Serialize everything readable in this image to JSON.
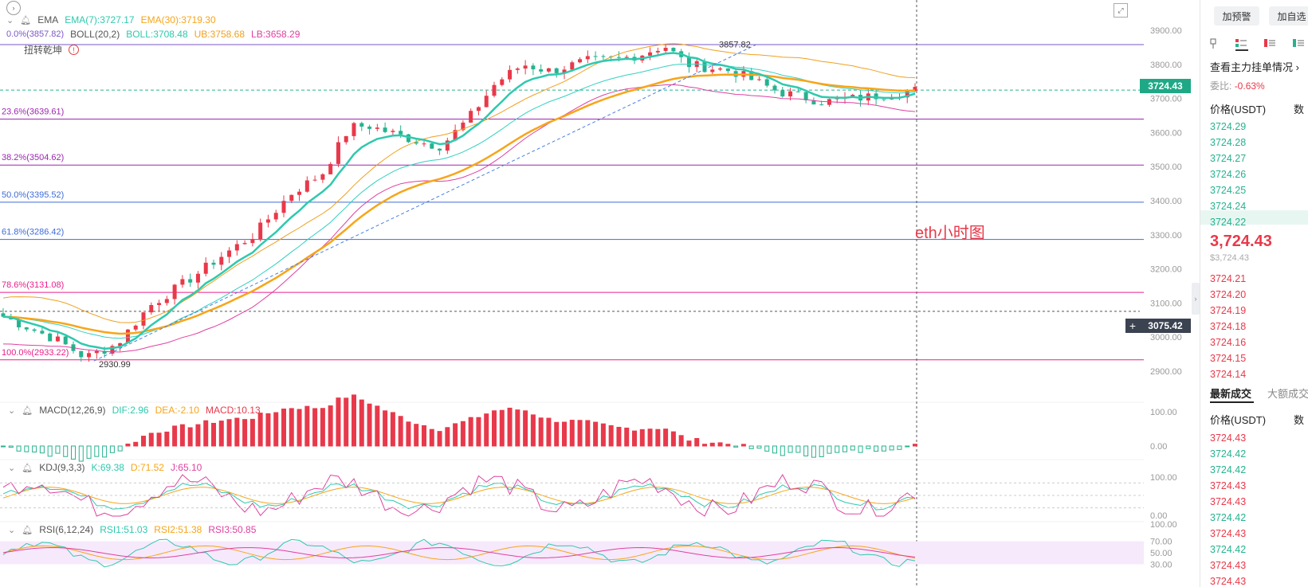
{
  "chart": {
    "toolbar_icon": "chevron-icon",
    "ema": {
      "name": "EMA",
      "v1": "EMA(7):3727.17",
      "v2": "EMA(30):3719.30"
    },
    "boll": {
      "name": "BOLL(20,2)",
      "v1": "BOLL:3708.48",
      "v2": "UB:3758.68",
      "v3": "LB:3658.29"
    },
    "boll_partial": "0.0%(3857.82)",
    "pattern": {
      "name": "扭转乾坤",
      "icon": "alert-icon"
    },
    "annotation": "eth小时图",
    "high_label": "3857.82",
    "low_label": "2930.99",
    "current_price": "3724.43",
    "crosshair_price": "3075.42",
    "fib_levels": [
      {
        "label": "23.6%(3639.61)",
        "price": 3639.61,
        "color": "#9c27b0"
      },
      {
        "label": "38.2%(3504.62)",
        "price": 3504.62,
        "color": "#9c27b0"
      },
      {
        "label": "50.0%(3395.52)",
        "price": 3395.52,
        "color": "#3f6bd8"
      },
      {
        "label": "61.8%(3286.42)",
        "price": 3286.42,
        "color": "#3f6bd8"
      },
      {
        "label": "78.6%(3131.08)",
        "price": 3131.08,
        "color": "#e91e8c"
      },
      {
        "label": "100.0%(2933.22)",
        "price": 2933.22,
        "color": "#e91e8c"
      }
    ],
    "top_fib_price": 3857.82,
    "price_axis": [
      "3900.00",
      "3800.00",
      "3700.00",
      "3600.00",
      "3500.00",
      "3400.00",
      "3300.00",
      "3200.00",
      "3100.00",
      "3000.00",
      "2900.00"
    ],
    "macd": {
      "name": "MACD(12,26,9)",
      "dif": "DIF:2.96",
      "dea": "DEA:-2.10",
      "macd": "MACD:10.13",
      "axis": [
        "100.00",
        "0.00"
      ]
    },
    "kdj": {
      "name": "KDJ(9,3,3)",
      "k": "K:69.38",
      "d": "D:71.52",
      "j": "J:65.10",
      "axis": [
        "100.00",
        "0.00"
      ]
    },
    "rsi": {
      "name": "RSI(6,12,24)",
      "r1": "RSI1:51.03",
      "r2": "RSI2:51.38",
      "r3": "RSI3:50.85",
      "axis": [
        "100.00",
        "70.00",
        "50.00",
        "30.00"
      ]
    },
    "colors": {
      "up": "#e8394a",
      "down": "#26b28f",
      "ema7": "#2ec9ae",
      "ema30": "#f7a519",
      "boll_up": "#f0a020",
      "boll_mid": "#33d0c0",
      "boll_low": "#e040a0"
    }
  },
  "sidebar": {
    "alert_button": "加预警",
    "watchlist_button": "加自选",
    "depth_link": "查看主力挂单情况",
    "ratio_label": "委比:",
    "ratio_value": "-0.63%",
    "price_header": "价格(USDT)",
    "qty_header": "数",
    "asks": [
      "3724.29",
      "3724.28",
      "3724.27",
      "3724.26",
      "3724.25",
      "3724.24",
      "3724.22"
    ],
    "last_price": "3,724.43",
    "last_price_usd": "$3,724.43",
    "bids": [
      "3724.21",
      "3724.20",
      "3724.19",
      "3724.18",
      "3724.16",
      "3724.15",
      "3724.14"
    ],
    "tab_latest": "最新成交",
    "tab_large": "大额成交",
    "trades_price_header": "价格(USDT)",
    "trades_qty_header": "数",
    "trades": [
      {
        "p": "3724.43",
        "side": "up"
      },
      {
        "p": "3724.42",
        "side": "down"
      },
      {
        "p": "3724.42",
        "side": "down"
      },
      {
        "p": "3724.43",
        "side": "up"
      },
      {
        "p": "3724.43",
        "side": "up"
      },
      {
        "p": "3724.42",
        "side": "down"
      },
      {
        "p": "3724.43",
        "side": "up"
      },
      {
        "p": "3724.42",
        "side": "down"
      },
      {
        "p": "3724.43",
        "side": "up"
      },
      {
        "p": "3724.43",
        "side": "up"
      }
    ]
  }
}
